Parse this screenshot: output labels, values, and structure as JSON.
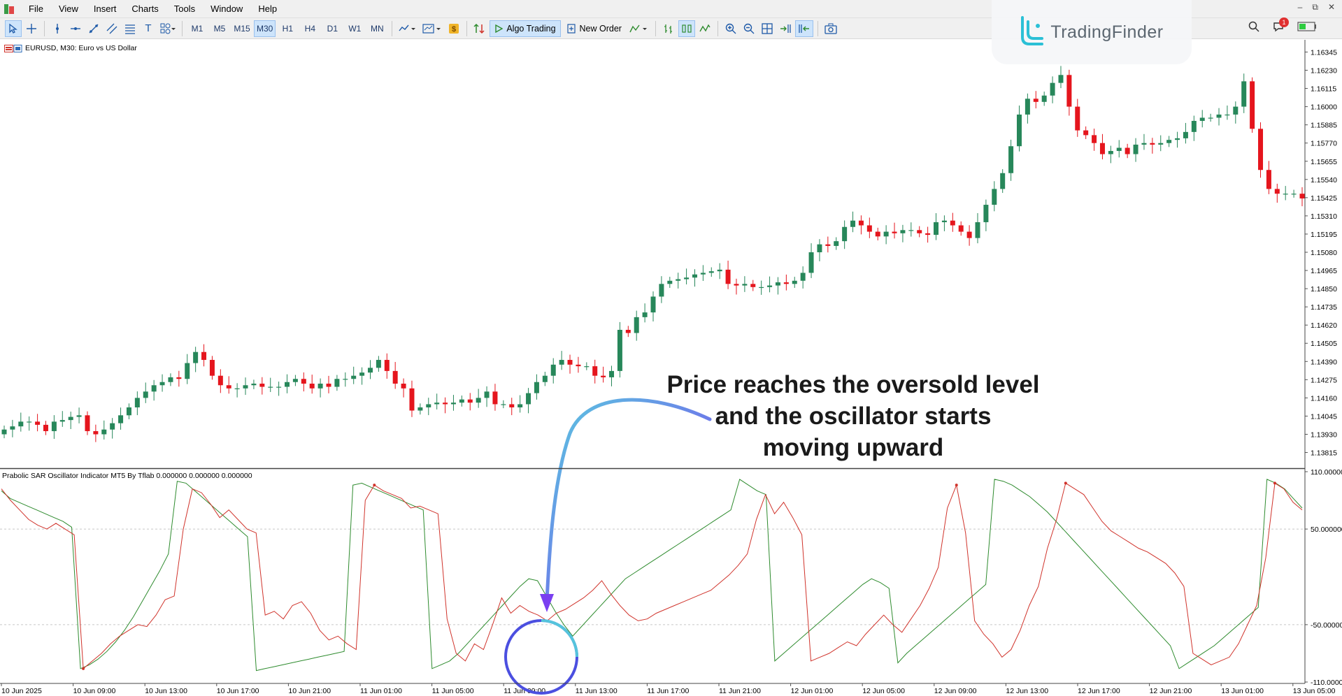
{
  "menu": [
    "File",
    "View",
    "Insert",
    "Charts",
    "Tools",
    "Window",
    "Help"
  ],
  "toolbar": {
    "timeframes": [
      "M1",
      "M5",
      "M15",
      "M30",
      "H1",
      "H4",
      "D1",
      "W1",
      "MN"
    ],
    "active_timeframe": "M30",
    "algo_trading": "Algo Trading",
    "new_order": "New Order"
  },
  "notifications_count": "1",
  "brand": {
    "name": "TradingFinder"
  },
  "chart": {
    "symbol_label": "EURUSD, M30:  Euro vs US Dollar",
    "indicator_label": "Prabolic SAR Oscillator Indicator MT5 By Tflab 0.000000 0.000000 0.000000",
    "annotation": [
      "Price reaches the oversold level",
      "and the oscillator starts",
      "moving upward"
    ]
  },
  "chart_data": {
    "type": "candlestick",
    "symbol": "EURUSD",
    "timeframe": "M30",
    "price_ticks": [
      "1.16345",
      "1.16230",
      "1.16115",
      "1.16000",
      "1.15885",
      "1.15770",
      "1.15655",
      "1.15540",
      "1.15425",
      "1.15310",
      "1.15195",
      "1.15080",
      "1.14965",
      "1.14850",
      "1.14735",
      "1.14620",
      "1.14505",
      "1.14390",
      "1.14275",
      "1.14160",
      "1.14045",
      "1.13930",
      "1.13815"
    ],
    "price_ylim": [
      1.1376,
      1.164
    ],
    "time_ticks": [
      "10 Jun 2025",
      "10 Jun 09:00",
      "10 Jun 13:00",
      "10 Jun 17:00",
      "10 Jun 21:00",
      "11 Jun 01:00",
      "11 Jun 05:00",
      "11 Jun 09:00",
      "11 Jun 13:00",
      "11 Jun 17:00",
      "11 Jun 21:00",
      "12 Jun 01:00",
      "12 Jun 05:00",
      "12 Jun 09:00",
      "12 Jun 13:00",
      "12 Jun 17:00",
      "12 Jun 21:00",
      "13 Jun 01:00",
      "13 Jun 05:00"
    ],
    "closes": [
      1.1396,
      1.1398,
      1.1401,
      1.1401,
      1.1399,
      1.1395,
      1.1401,
      1.1402,
      1.1404,
      1.1405,
      1.1395,
      1.1393,
      1.1396,
      1.14,
      1.1405,
      1.141,
      1.1416,
      1.142,
      1.1424,
      1.1426,
      1.1429,
      1.1428,
      1.1438,
      1.1445,
      1.144,
      1.143,
      1.1424,
      1.1422,
      1.1422,
      1.1424,
      1.1425,
      1.1423,
      1.1423,
      1.1423,
      1.1426,
      1.1428,
      1.1425,
      1.1422,
      1.1425,
      1.1423,
      1.1428,
      1.1428,
      1.143,
      1.1432,
      1.1435,
      1.144,
      1.1433,
      1.1425,
      1.1422,
      1.1408,
      1.141,
      1.1412,
      1.1413,
      1.1412,
      1.1413,
      1.1415,
      1.1413,
      1.1416,
      1.142,
      1.1412,
      1.1412,
      1.141,
      1.1412,
      1.1419,
      1.1426,
      1.143,
      1.1437,
      1.144,
      1.1437,
      1.1436,
      1.1436,
      1.143,
      1.1429,
      1.1433,
      1.1459,
      1.1457,
      1.1467,
      1.147,
      1.148,
      1.1488,
      1.149,
      1.1491,
      1.1492,
      1.1494,
      1.1495,
      1.1496,
      1.1497,
      1.1488,
      1.1487,
      1.1488,
      1.1486,
      1.1486,
      1.1487,
      1.1489,
      1.1488,
      1.149,
      1.1495,
      1.1508,
      1.1513,
      1.1512,
      1.1515,
      1.1524,
      1.1528,
      1.1525,
      1.1521,
      1.1518,
      1.1521,
      1.152,
      1.1522,
      1.1522,
      1.152,
      1.1519,
      1.1527,
      1.1528,
      1.1525,
      1.1521,
      1.1517,
      1.1527,
      1.1538,
      1.1548,
      1.1558,
      1.1575,
      1.1595,
      1.1605,
      1.1603,
      1.1607,
      1.1615,
      1.162,
      1.16,
      1.1585,
      1.1582,
      1.1577,
      1.157,
      1.1572,
      1.1574,
      1.157,
      1.1576,
      1.1577,
      1.1576,
      1.1577,
      1.1579,
      1.158,
      1.1584,
      1.1591,
      1.1593,
      1.1593,
      1.1595,
      1.1595,
      1.16,
      1.1616,
      1.1586,
      1.156,
      1.1548,
      1.1545,
      1.1545,
      1.1545,
      1.1542
    ],
    "oscillator_ylim": [
      -110,
      110
    ],
    "oscillator_ticks": [
      "110.000000",
      "50.000000",
      "-50.000000",
      "-110.000000"
    ],
    "series": [
      {
        "name": "green",
        "color": "#2e8b2e",
        "values": [
          90,
          82,
          78,
          74,
          70,
          66,
          62,
          58,
          52,
          -96,
          -92,
          -86,
          -78,
          -68,
          -56,
          -42,
          -26,
          -10,
          6,
          24,
          100,
          98,
          90,
          82,
          74,
          66,
          58,
          50,
          42,
          -98,
          -96,
          -94,
          -92,
          -90,
          -88,
          -86,
          -84,
          -82,
          -80,
          -78,
          96,
          98,
          94,
          90,
          86,
          82,
          78,
          74,
          70,
          -96,
          -92,
          -88,
          -80,
          -70,
          -60,
          -50,
          -40,
          -30,
          -20,
          -10,
          -2,
          -4,
          -20,
          -36,
          -50,
          -62,
          -52,
          -42,
          -32,
          -22,
          -12,
          -2,
          4,
          10,
          16,
          22,
          28,
          34,
          40,
          46,
          52,
          58,
          64,
          70,
          102,
          96,
          90,
          86,
          -88,
          -80,
          -72,
          -64,
          -56,
          -48,
          -40,
          -32,
          -24,
          -16,
          -8,
          -2,
          -6,
          -12,
          -90,
          -80,
          -72,
          -64,
          -56,
          -48,
          -40,
          -32,
          -24,
          -16,
          -8,
          102,
          100,
          96,
          90,
          84,
          76,
          68,
          58,
          48,
          38,
          28,
          18,
          8,
          -2,
          -12,
          -22,
          -32,
          -42,
          -52,
          -62,
          -72,
          -96,
          -90,
          -84,
          -78,
          -72,
          -64,
          -56,
          -48,
          -40,
          -32,
          102,
          98,
          92,
          82,
          72
        ]
      },
      {
        "name": "red",
        "color": "#d0332b",
        "values": [
          92,
          80,
          70,
          60,
          54,
          50,
          56,
          50,
          44,
          -96,
          -88,
          -80,
          -70,
          -62,
          -56,
          -50,
          -52,
          -40,
          -24,
          -20,
          50,
          92,
          88,
          76,
          62,
          70,
          60,
          50,
          46,
          -40,
          -36,
          -44,
          -30,
          -26,
          -38,
          -56,
          -66,
          -62,
          -70,
          -76,
          80,
          96,
          90,
          86,
          82,
          72,
          74,
          70,
          66,
          -44,
          -80,
          -88,
          -70,
          -76,
          -50,
          -22,
          -38,
          -30,
          -36,
          -40,
          -46,
          -38,
          -34,
          -28,
          -22,
          -14,
          -4,
          -18,
          -30,
          -40,
          -46,
          -44,
          -38,
          -34,
          -30,
          -26,
          -22,
          -18,
          -14,
          -6,
          2,
          12,
          24,
          60,
          86,
          66,
          78,
          62,
          44,
          -88,
          -84,
          -80,
          -74,
          -68,
          -72,
          -60,
          -50,
          -40,
          -50,
          -58,
          -44,
          -30,
          -12,
          10,
          72,
          96,
          46,
          -46,
          -60,
          -70,
          -84,
          -76,
          -56,
          -30,
          -10,
          30,
          60,
          98,
          92,
          86,
          72,
          58,
          48,
          42,
          36,
          30,
          26,
          20,
          14,
          4,
          -10,
          -80,
          -86,
          -92,
          -88,
          -84,
          -70,
          -50,
          -30,
          20,
          98,
          92,
          78,
          70
        ]
      }
    ]
  }
}
